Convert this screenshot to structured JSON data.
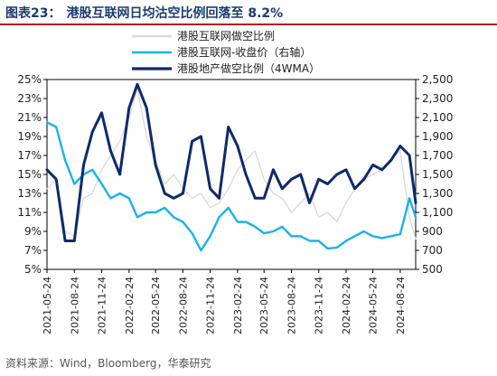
{
  "header": {
    "figure_label": "图表23：",
    "title": "港股互联网日均沽空比例回落至 8.2%"
  },
  "footer": {
    "source_prefix": "资料来源：",
    "sources": "Wind，Bloomberg，华泰研究"
  },
  "colors": {
    "short_ratio": "#d9d9d9",
    "index": "#1ab2e8",
    "property": "#0c2a6b",
    "title": "#1a3c6e",
    "rule": "#b31b1b"
  },
  "chart_data": {
    "type": "line",
    "legend": [
      "港股互联网做空比例",
      "港股互联网-收盘价（右轴）",
      "港股地产做空比例（4WMA）"
    ],
    "legend_position": "top-center",
    "grid": false,
    "x_ticks": [
      "2021-05-24",
      "2021-08-24",
      "2021-11-24",
      "2022-02-24",
      "2022-05-24",
      "2022-08-24",
      "2022-11-24",
      "2023-02-24",
      "2023-05-24",
      "2023-08-24",
      "2023-11-24",
      "2024-02-24",
      "2024-05-24",
      "2024-08-24"
    ],
    "y_left_ticks": [
      "25%",
      "23%",
      "21%",
      "19%",
      "17%",
      "15%",
      "13%",
      "11%",
      "9%",
      "7%",
      "5%"
    ],
    "y_right_ticks": [
      "2,500",
      "2,300",
      "2,100",
      "1,900",
      "1,700",
      "1,500",
      "1,300",
      "1,100",
      "900",
      "700",
      "500"
    ],
    "ylim_left": [
      5,
      25
    ],
    "ylim_right": [
      500,
      2500
    ],
    "x": [
      "2021-05-24",
      "2021-06-24",
      "2021-07-24",
      "2021-08-24",
      "2021-09-24",
      "2021-10-24",
      "2021-11-24",
      "2021-12-24",
      "2022-01-24",
      "2022-02-24",
      "2022-03-24",
      "2022-04-24",
      "2022-05-24",
      "2022-06-24",
      "2022-07-24",
      "2022-08-24",
      "2022-09-24",
      "2022-10-24",
      "2022-11-24",
      "2022-12-24",
      "2023-01-24",
      "2023-02-24",
      "2023-03-24",
      "2023-04-24",
      "2023-05-24",
      "2023-06-24",
      "2023-07-24",
      "2023-08-24",
      "2023-09-24",
      "2023-10-24",
      "2023-11-24",
      "2023-12-24",
      "2024-01-24",
      "2024-02-24",
      "2024-03-24",
      "2024-04-24",
      "2024-05-24",
      "2024-06-24",
      "2024-07-24",
      "2024-08-24",
      "2024-09-24",
      "2024-10-15"
    ],
    "series": [
      {
        "name": "港股互联网做空比例",
        "axis": "left",
        "values": [
          13.5,
          14.5,
          9.0,
          8.5,
          12.5,
          13.0,
          15.5,
          17.0,
          18.5,
          21.0,
          24.0,
          19.0,
          16.5,
          14.0,
          15.0,
          13.5,
          12.5,
          13.0,
          11.5,
          12.0,
          13.5,
          15.5,
          16.5,
          17.5,
          14.5,
          13.0,
          12.5,
          11.0,
          12.0,
          13.0,
          10.5,
          11.0,
          10.0,
          12.0,
          13.5,
          14.5,
          15.0,
          15.5,
          16.5,
          17.5,
          10.5,
          8.2
        ]
      },
      {
        "name": "港股互联网-收盘价（右轴）",
        "axis": "right",
        "values": [
          2050,
          2000,
          1650,
          1400,
          1500,
          1550,
          1400,
          1250,
          1300,
          1250,
          1050,
          1100,
          1100,
          1150,
          1050,
          1000,
          880,
          700,
          850,
          1050,
          1150,
          1000,
          1000,
          950,
          880,
          900,
          950,
          850,
          850,
          800,
          800,
          720,
          730,
          800,
          850,
          900,
          850,
          830,
          850,
          870,
          1250,
          1050
        ]
      },
      {
        "name": "港股地产做空比例（4WMA）",
        "axis": "left",
        "values": [
          15.5,
          14.5,
          8.0,
          8.0,
          16.0,
          19.5,
          21.5,
          17.5,
          15.0,
          22.0,
          24.5,
          22.0,
          16.0,
          13.0,
          12.5,
          13.0,
          18.5,
          19.0,
          13.5,
          12.5,
          20.0,
          18.0,
          15.0,
          12.5,
          12.5,
          15.5,
          13.5,
          14.5,
          15.0,
          12.0,
          14.5,
          14.0,
          15.0,
          15.5,
          13.5,
          14.5,
          16.0,
          15.5,
          16.5,
          18.0,
          17.0,
          12.0
        ]
      }
    ]
  }
}
